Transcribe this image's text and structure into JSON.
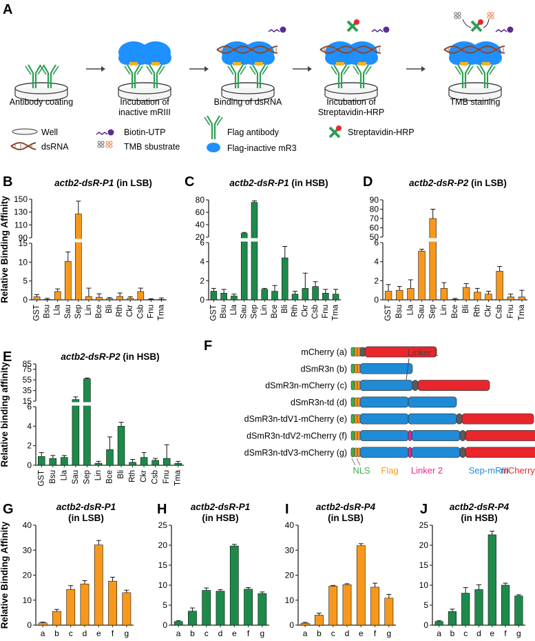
{
  "colors": {
    "orange": "#f7981d",
    "green": "#1d8a4a",
    "axis": "#222222",
    "nls": "#3fae49",
    "flag": "#f7981d",
    "linker2": "#e7258f",
    "sepmriii": "#1f8ad6",
    "mcherry": "#e8262b",
    "linker1": "#5a5a5a",
    "protein": "#1e90ff",
    "antibody": "#2e9e55",
    "dsrna": "#7a4a3a",
    "biotin": "#5b2c91"
  },
  "panels": {
    "A": "A",
    "B": "B",
    "C": "C",
    "D": "D",
    "E": "E",
    "F": "F",
    "G": "G",
    "H": "H",
    "I": "I",
    "J": "J"
  },
  "schematic": {
    "steps": [
      "Antibody coating",
      "Incubation of\ninactive mRIII",
      "Binding of dsRNA",
      "Incubation of\nStreptavidin-HRP",
      "TMB staining"
    ],
    "legend": {
      "well": "Well",
      "dsrna": "dsRNA",
      "biotin": "Biotin-UTP",
      "tmb": "TMB sbustrate",
      "flag_antibody": "Flag antibody",
      "flag_mr3": "Flag-inactive mR3",
      "strep": "Streptavidin-HRP"
    }
  },
  "constructs": {
    "items": [
      {
        "label": "mCherry (a)",
        "parts": [
          "mcherry"
        ]
      },
      {
        "label": "dSmR3n (b)",
        "parts": [
          "sep"
        ]
      },
      {
        "label": "dSmR3n-mCherry (c)",
        "parts": [
          "sep",
          "linker1",
          "mcherry"
        ]
      },
      {
        "label": "dSmR3n-td (d)",
        "parts": [
          "sep",
          "sep"
        ]
      },
      {
        "label": "dSmR3n-tdV1-mCherry (e)",
        "parts": [
          "sep",
          "sep",
          "linker1",
          "mcherry"
        ]
      },
      {
        "label": "dSmR3n-tdV2-mCherry (f)",
        "parts": [
          "sep",
          "linker2",
          "sep",
          "linker1",
          "mcherry"
        ]
      },
      {
        "label": "dSmR3n-tdV3-mCherry (g)",
        "parts": [
          "sep",
          "linker2",
          "sep",
          "linker1",
          "mcherry"
        ]
      }
    ],
    "linker1_label": "Linker 1",
    "legend": [
      "NLS",
      "Flag",
      "Linker 2",
      "Sep-mRIII",
      "mCherry"
    ]
  },
  "chart_data": [
    {
      "panel": "B",
      "type": "bar",
      "title": "actb2-dsR-P1",
      "title_suffix": " (in LSB)",
      "ylabel": "Relative Binding Affinity",
      "color": "orange",
      "categories": [
        "GST",
        "Bsu",
        "Lla",
        "Sau",
        "Sep",
        "Lin",
        "Bce",
        "Bli",
        "Rth",
        "Ckr",
        "Csb",
        "Fnu",
        "Tma"
      ],
      "values": [
        0.8,
        0.1,
        2.2,
        10.2,
        127,
        0.9,
        0.7,
        0.3,
        0.9,
        0.4,
        2.2,
        0.1,
        0.1
      ],
      "errors": [
        0.6,
        0.3,
        0.7,
        2.5,
        20,
        2.2,
        0.9,
        0.3,
        0.9,
        0.4,
        0.9,
        0.2,
        0.4
      ],
      "segments": [
        {
          "range": [
            0,
            15
          ],
          "ticks": [
            0,
            5,
            10,
            15
          ]
        },
        {
          "range": [
            90,
            150
          ],
          "ticks": [
            90,
            110,
            130,
            150
          ]
        }
      ]
    },
    {
      "panel": "C",
      "type": "bar",
      "title": "actb2-dsR-P1",
      "title_suffix": " (in HSB)",
      "color": "green",
      "categories": [
        "GST",
        "Bsu",
        "Lla",
        "Sau",
        "Sep",
        "Lin",
        "Bce",
        "Bli",
        "Rth",
        "Ckr",
        "Csb",
        "Fnu",
        "Tma"
      ],
      "values": [
        0.9,
        0.7,
        0.4,
        26,
        76,
        1.1,
        0.9,
        4.4,
        0.6,
        1.2,
        1.4,
        0.7,
        0.6
      ],
      "errors": [
        0.3,
        0.4,
        0.2,
        1.5,
        2.5,
        0.1,
        0.6,
        1.2,
        0.3,
        1.6,
        0.5,
        0.4,
        0.5
      ],
      "segments": [
        {
          "range": [
            0,
            6
          ],
          "ticks": [
            0,
            2,
            4,
            6
          ]
        },
        {
          "range": [
            20,
            80
          ],
          "ticks": [
            20,
            40,
            60,
            80
          ]
        }
      ]
    },
    {
      "panel": "D",
      "type": "bar",
      "title": "actb2-dsR-P2",
      "title_suffix": " (in LSB)",
      "color": "orange",
      "categories": [
        "GST",
        "Bsu",
        "Lla",
        "Sau",
        "Sep",
        "Lin",
        "Bce",
        "Bli",
        "Rth",
        "Ckr",
        "Csb",
        "Fnu",
        "Tma"
      ],
      "values": [
        0.9,
        1.0,
        1.2,
        5.1,
        70,
        1.2,
        0.05,
        1.3,
        0.8,
        0.6,
        3.0,
        0.3,
        0.3
      ],
      "errors": [
        0.7,
        0.4,
        0.9,
        0.2,
        10,
        0.6,
        0.1,
        0.4,
        0.4,
        0.3,
        0.5,
        0.3,
        0.7
      ],
      "segments": [
        {
          "range": [
            0,
            6
          ],
          "ticks": [
            0,
            2,
            4,
            6
          ]
        },
        {
          "range": [
            50,
            90
          ],
          "ticks": [
            50,
            60,
            70,
            80,
            90
          ]
        }
      ]
    },
    {
      "panel": "E",
      "type": "bar",
      "title": "actb2-dsR-P2",
      "title_suffix": " (in HSB)",
      "ylabel": "Relative binding affinity",
      "color": "green",
      "categories": [
        "GST",
        "Bsu",
        "Lla",
        "Sau",
        "Sep",
        "Lin",
        "Bce",
        "Bli",
        "Rth",
        "Ckr",
        "Csb",
        "Fnu",
        "Tma"
      ],
      "values": [
        0.9,
        0.7,
        0.8,
        18,
        57,
        0.2,
        1.6,
        4.0,
        0.3,
        0.8,
        0.5,
        0.7,
        0.2
      ],
      "errors": [
        0.4,
        0.3,
        0.2,
        5,
        1.5,
        0.2,
        1.3,
        0.4,
        0.3,
        0.5,
        0.2,
        1.4,
        0.2
      ],
      "segments": [
        {
          "range": [
            0,
            6
          ],
          "ticks": [
            0,
            2,
            4,
            6
          ]
        },
        {
          "range": [
            15,
            85
          ],
          "ticks": [
            15,
            35,
            55,
            75,
            85
          ]
        }
      ]
    },
    {
      "panel": "G",
      "type": "bar",
      "title": "actb2-dsR-P1",
      "subtitle": "(in LSB)",
      "ylabel": "Relative Binding Affinity",
      "color": "orange",
      "categories": [
        "a",
        "b",
        "c",
        "d",
        "e",
        "f",
        "g"
      ],
      "values": [
        0.9,
        5.5,
        14.3,
        16.5,
        32.1,
        17.6,
        13.0
      ],
      "errors": [
        0.3,
        0.8,
        1.5,
        1.3,
        1.8,
        1.6,
        1.0
      ],
      "ylim": [
        0,
        40
      ],
      "yticks": [
        0,
        10,
        20,
        30,
        40
      ]
    },
    {
      "panel": "H",
      "type": "bar",
      "title": "actb2-dsR-P1",
      "subtitle": "(in HSB)",
      "color": "green",
      "categories": [
        "a",
        "b",
        "c",
        "d",
        "e",
        "f",
        "g"
      ],
      "values": [
        0.9,
        3.5,
        8.7,
        8.5,
        19.8,
        9.0,
        7.9
      ],
      "errors": [
        0.2,
        0.8,
        0.6,
        0.4,
        0.4,
        0.4,
        0.4
      ],
      "ylim": [
        0,
        25
      ],
      "yticks": [
        0,
        5,
        10,
        15,
        20,
        25
      ]
    },
    {
      "panel": "I",
      "type": "bar",
      "title": "actb2-dsR-P4",
      "subtitle": "(in LSB)",
      "color": "orange",
      "categories": [
        "a",
        "b",
        "c",
        "d",
        "e",
        "f",
        "g"
      ],
      "values": [
        0.8,
        4.0,
        15.6,
        16.2,
        31.8,
        15.2,
        10.8
      ],
      "errors": [
        0.3,
        0.8,
        0.3,
        0.4,
        0.8,
        1.6,
        1.5
      ],
      "ylim": [
        0,
        40
      ],
      "yticks": [
        0,
        10,
        20,
        30,
        40
      ]
    },
    {
      "panel": "J",
      "type": "bar",
      "title": "actb2-dsR-P4",
      "subtitle": "(in HSB)",
      "color": "green",
      "categories": [
        "a",
        "b",
        "c",
        "d",
        "e",
        "f",
        "g"
      ],
      "values": [
        0.9,
        3.4,
        8.0,
        8.9,
        22.6,
        10.0,
        7.3
      ],
      "errors": [
        0.2,
        0.6,
        1.4,
        1.2,
        0.9,
        0.5,
        0.3
      ],
      "ylim": [
        0,
        25
      ],
      "yticks": [
        0,
        5,
        10,
        15,
        20,
        25
      ]
    }
  ]
}
